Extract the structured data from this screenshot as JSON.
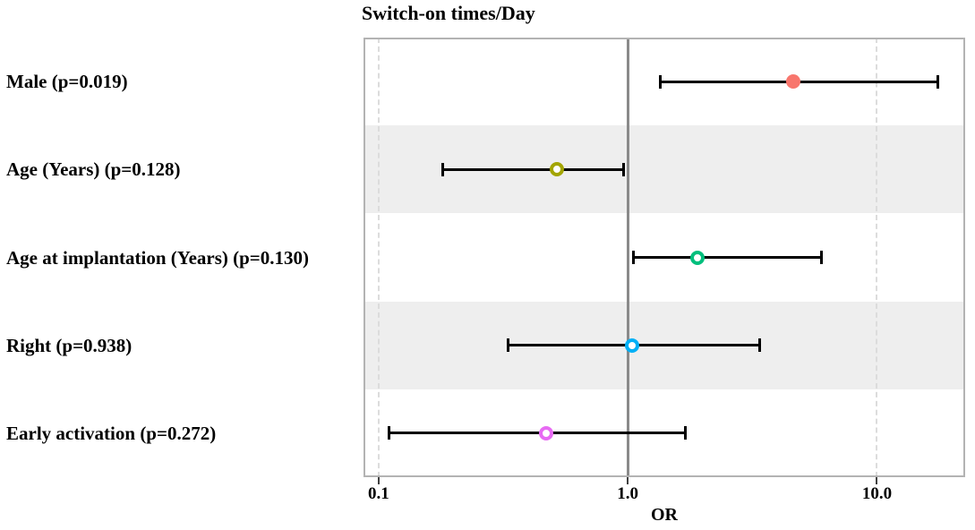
{
  "chart_data": {
    "type": "scatter",
    "variant": "forest_plot",
    "title": "Switch-on times/Day",
    "xlabel": "OR",
    "x_scale": "log10",
    "xlim": [
      0.087,
      22.6
    ],
    "x_ticks": [
      0.1,
      1.0,
      10.0
    ],
    "x_tick_labels": [
      "0.1",
      "1.0",
      "10.0"
    ],
    "reference_line": 1.0,
    "dashed_gridlines": [
      0.1,
      10.0
    ],
    "shaded_row_indices": [
      1,
      3
    ],
    "grid": "off",
    "legend": "none",
    "rows": [
      {
        "label": "Male (p=0.019)",
        "p_value": 0.019,
        "or": 4.6,
        "ci_low": 1.35,
        "ci_high": 17.6,
        "color": "#F8766D",
        "marker": "filled"
      },
      {
        "label": "Age (Years) (p=0.128)",
        "p_value": 0.128,
        "or": 0.52,
        "ci_low": 0.18,
        "ci_high": 0.97,
        "color": "#A3A500",
        "marker": "open"
      },
      {
        "label": "Age at implantation (Years) (p=0.130)",
        "p_value": 0.13,
        "or": 1.9,
        "ci_low": 1.05,
        "ci_high": 6.0,
        "color": "#00BF7D",
        "marker": "open"
      },
      {
        "label": "Right (p=0.938)",
        "p_value": 0.938,
        "or": 1.04,
        "ci_low": 0.33,
        "ci_high": 3.4,
        "color": "#00B0F6",
        "marker": "open"
      },
      {
        "label": "Early activation (p=0.272)",
        "p_value": 0.272,
        "or": 0.47,
        "ci_low": 0.11,
        "ci_high": 1.71,
        "color": "#E76BF3",
        "marker": "open"
      }
    ],
    "style_colors": {
      "band": "#EEEEEE",
      "panel_border": "#B3B3B3",
      "reference_line": "#8A8A8A",
      "dashed_gridline": "#DCDCDC",
      "error_bar": "#000000",
      "text": "#000000"
    }
  }
}
